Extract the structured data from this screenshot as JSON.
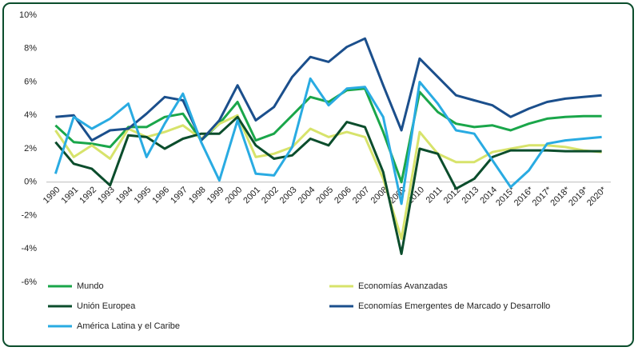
{
  "chart_data": {
    "type": "line",
    "categories": [
      "1990",
      "1991",
      "1992",
      "1993",
      "1994",
      "1995",
      "1996",
      "1997",
      "1998",
      "1999",
      "2000",
      "2001",
      "2002",
      "2003",
      "2004",
      "2005",
      "2006",
      "2007",
      "2008",
      "2009",
      "2010",
      "2011",
      "2012",
      "2013",
      "2014",
      "2015*",
      "2016*",
      "2017*",
      "2018*",
      "2019*",
      "2020*"
    ],
    "ylim": [
      -6,
      10
    ],
    "yticks": [
      {
        "value": -6,
        "label": "-6%"
      },
      {
        "value": -4,
        "label": "-4%"
      },
      {
        "value": -2,
        "label": "-2%"
      },
      {
        "value": 0,
        "label": "0%"
      },
      {
        "value": 2,
        "label": "2%"
      },
      {
        "value": 4,
        "label": "4%"
      },
      {
        "value": 6,
        "label": "6%"
      },
      {
        "value": 8,
        "label": "8%"
      },
      {
        "value": 10,
        "label": "10%"
      }
    ],
    "grid": false,
    "legend": "bottom",
    "series": [
      {
        "name": "Mundo",
        "color": "#1aa64a",
        "values": [
          3.4,
          2.4,
          2.3,
          2.1,
          3.3,
          3.3,
          3.9,
          4.1,
          2.5,
          3.5,
          4.8,
          2.5,
          2.9,
          4.0,
          5.1,
          4.8,
          5.5,
          5.6,
          3.0,
          0.0,
          5.4,
          4.2,
          3.5,
          3.3,
          3.4,
          3.1,
          3.5,
          3.8,
          3.9,
          3.95,
          3.95
        ]
      },
      {
        "name": "Economías Avanzadas",
        "color": "#d7e36b",
        "values": [
          3.1,
          1.5,
          2.2,
          1.4,
          3.2,
          2.7,
          3.0,
          3.4,
          2.6,
          3.5,
          4.0,
          1.5,
          1.7,
          2.1,
          3.2,
          2.7,
          3.0,
          2.7,
          0.2,
          -3.4,
          3.0,
          1.7,
          1.2,
          1.2,
          1.8,
          2.0,
          2.2,
          2.2,
          2.1,
          1.9,
          1.8
        ]
      },
      {
        "name": "Unión Europea",
        "color": "#0b4d2c",
        "values": [
          2.4,
          1.1,
          0.8,
          -0.2,
          2.8,
          2.7,
          2.0,
          2.6,
          2.9,
          2.9,
          3.9,
          2.2,
          1.4,
          1.6,
          2.6,
          2.2,
          3.6,
          3.3,
          0.6,
          -4.3,
          2.0,
          1.7,
          -0.4,
          0.2,
          1.5,
          1.9,
          1.9,
          1.9,
          1.85,
          1.85,
          1.85
        ]
      },
      {
        "name": "Economías Emergentes de Marcado y Desarrollo",
        "color": "#1b4f8c",
        "values": [
          3.9,
          4.0,
          2.5,
          3.1,
          3.2,
          4.1,
          5.1,
          4.9,
          2.5,
          3.7,
          5.8,
          3.7,
          4.5,
          6.3,
          7.5,
          7.2,
          8.1,
          8.6,
          5.8,
          3.1,
          7.4,
          6.3,
          5.2,
          4.9,
          4.6,
          3.9,
          4.4,
          4.8,
          5.0,
          5.1,
          5.2
        ]
      },
      {
        "name": "América Latina y el Caribe",
        "color": "#29abe2",
        "values": [
          0.5,
          3.9,
          3.2,
          3.8,
          4.7,
          1.5,
          3.5,
          5.3,
          2.4,
          0.1,
          3.7,
          0.5,
          0.4,
          2.1,
          6.2,
          4.6,
          5.6,
          5.7,
          3.9,
          -1.3,
          6.0,
          4.7,
          3.1,
          2.9,
          1.3,
          -0.3,
          0.7,
          2.3,
          2.5,
          2.6,
          2.7
        ]
      }
    ]
  }
}
